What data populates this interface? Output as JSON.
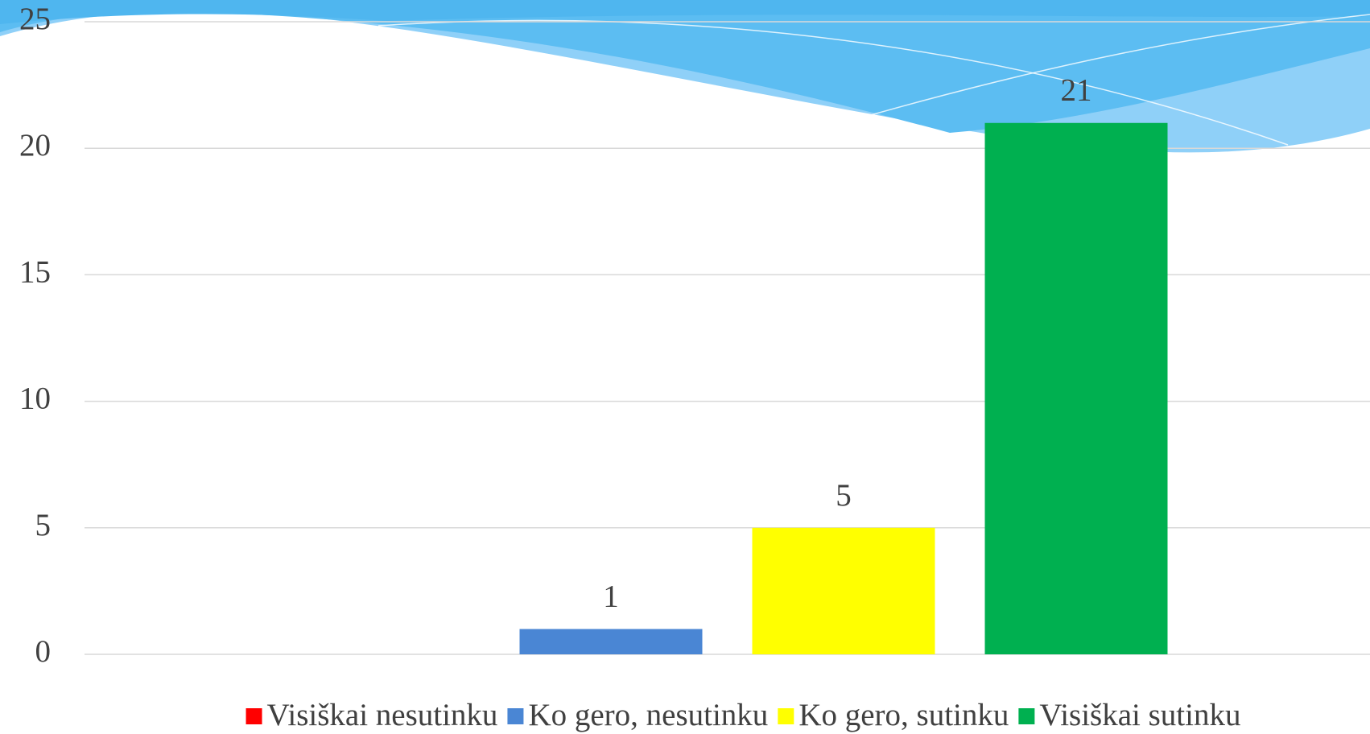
{
  "chart_data": {
    "type": "bar",
    "categories": [
      null
    ],
    "series": [
      {
        "name": "Visiškai nesutinku",
        "color": "#ff0000",
        "values": [
          0
        ]
      },
      {
        "name": "Ko gero, nesutinku",
        "color": "#4a86d4",
        "values": [
          1
        ]
      },
      {
        "name": "Ko gero, sutinku",
        "color": "#ffff00",
        "values": [
          5
        ]
      },
      {
        "name": "Visiškai sutinku",
        "color": "#00b050",
        "values": [
          21
        ]
      }
    ],
    "ylim": [
      0,
      25
    ],
    "yticks": [
      0,
      5,
      10,
      15,
      20,
      25
    ],
    "grid": true,
    "legend": "bottom"
  }
}
